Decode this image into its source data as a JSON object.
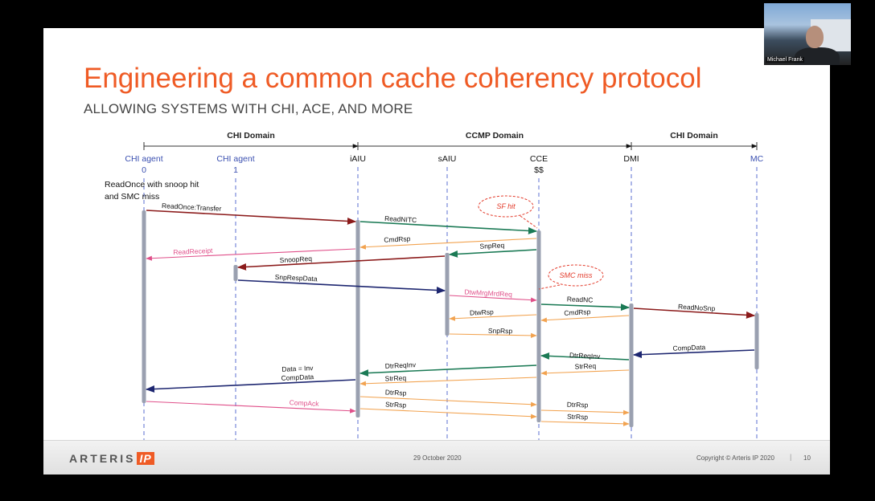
{
  "slide": {
    "title": "Engineering a common cache coherency protocol",
    "subtitle": "ALLOWING SYSTEMS WITH CHI, ACE, AND MORE",
    "footer": {
      "logo_text": "ARTERIS",
      "logo_ip": "IP",
      "date": "29 October 2020",
      "copyright": "Copyright © Arteris IP 2020",
      "separator": "|",
      "page_number": "10"
    }
  },
  "webcam": {
    "name": "Michael Frank"
  },
  "colors": {
    "title": "#ef5b25",
    "agent_blue": "#3a4fb0",
    "dark_red": "#8b1a1a",
    "green": "#1b7a55",
    "orange": "#f2a350",
    "pink": "#e0508a",
    "navy": "#1d2670",
    "lifeline": "#5b6fd0",
    "activation": "#9aa0b0",
    "callout": "#e33b2b"
  },
  "domains": [
    {
      "label": "CHI Domain"
    },
    {
      "label": "CCMP Domain"
    },
    {
      "label": "CHI Domain"
    }
  ],
  "participants": [
    {
      "id": "chi0",
      "line1": "CHI agent",
      "line2": "0",
      "color": "agent_blue"
    },
    {
      "id": "chi1",
      "line1": "CHI agent",
      "line2": "1",
      "color": "agent_blue"
    },
    {
      "id": "iaiu",
      "line1": "iAIU",
      "line2": "",
      "color": "black"
    },
    {
      "id": "saiu",
      "line1": "sAIU",
      "line2": "",
      "color": "black"
    },
    {
      "id": "cce",
      "line1": "CCE",
      "line2": "$$",
      "color": "black"
    },
    {
      "id": "dmi",
      "line1": "DMI",
      "line2": "",
      "color": "black"
    },
    {
      "id": "mc",
      "line1": "MC",
      "line2": "",
      "color": "agent_blue"
    }
  ],
  "scenario": {
    "line1": "ReadOnce with snoop hit",
    "line2": "and SMC miss"
  },
  "callouts": [
    {
      "text": "SF hit"
    },
    {
      "text": "SMC miss"
    }
  ],
  "messages": [
    {
      "label": "ReadOnce:Transfer",
      "from": "chi0",
      "to": "iaiu",
      "color": "dark_red"
    },
    {
      "label": "ReadNITC",
      "from": "iaiu",
      "to": "cce",
      "color": "green"
    },
    {
      "label": "CmdRsp",
      "from": "cce",
      "to": "iaiu",
      "color": "orange"
    },
    {
      "label": "SnpReq",
      "from": "cce",
      "to": "saiu",
      "color": "green"
    },
    {
      "label": "ReadReceipt",
      "from": "iaiu",
      "to": "chi0",
      "color": "pink"
    },
    {
      "label": "SnoopReq",
      "from": "saiu",
      "to": "chi1",
      "color": "dark_red"
    },
    {
      "label": "SnpRespData",
      "from": "chi1",
      "to": "saiu",
      "color": "navy"
    },
    {
      "label": "DtwMrgMrdReq",
      "from": "saiu",
      "to": "cce",
      "color": "pink"
    },
    {
      "label": "ReadNC",
      "from": "cce",
      "to": "dmi",
      "color": "green"
    },
    {
      "label": "ReadNoSnp",
      "from": "dmi",
      "to": "mc",
      "color": "dark_red"
    },
    {
      "label": "DtwRsp",
      "from": "cce",
      "to": "saiu",
      "color": "orange"
    },
    {
      "label": "CmdRsp",
      "from": "dmi",
      "to": "cce",
      "color": "orange"
    },
    {
      "label": "SnpRsp",
      "from": "saiu",
      "to": "cce",
      "color": "orange"
    },
    {
      "label": "CompData",
      "from": "mc",
      "to": "dmi",
      "color": "navy"
    },
    {
      "label": "DtrReqInv",
      "from": "dmi",
      "to": "cce",
      "color": "green"
    },
    {
      "label": "StrReq",
      "from": "dmi",
      "to": "cce",
      "color": "orange"
    },
    {
      "label": "DtrReqInv",
      "from": "cce",
      "to": "iaiu",
      "color": "green"
    },
    {
      "label": "StrReq",
      "from": "cce",
      "to": "iaiu",
      "color": "orange"
    },
    {
      "label": "Data = Inv\nCompData",
      "from": "iaiu",
      "to": "chi0",
      "color": "navy"
    },
    {
      "label": "DtrRsp",
      "from": "iaiu",
      "to": "cce",
      "color": "orange"
    },
    {
      "label": "StrRsp",
      "from": "iaiu",
      "to": "cce",
      "color": "orange"
    },
    {
      "label": "CompAck",
      "from": "chi0",
      "to": "iaiu",
      "color": "pink"
    },
    {
      "label": "DtrRsp",
      "from": "cce",
      "to": "dmi",
      "color": "orange"
    },
    {
      "label": "StrRsp",
      "from": "cce",
      "to": "dmi",
      "color": "orange"
    }
  ]
}
